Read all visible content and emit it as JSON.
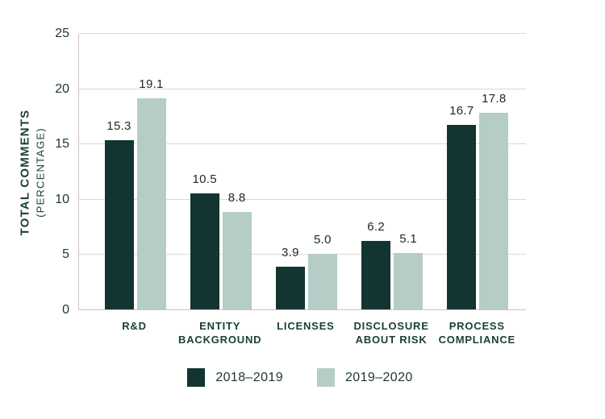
{
  "chart_data": {
    "type": "bar",
    "title": "",
    "categories": [
      "R&D",
      "ENTITY BACKGROUND",
      "LICENSES",
      "DISCLOSURE ABOUT RISK",
      "PROCESS COMPLIANCE"
    ],
    "series": [
      {
        "name": "2018–2019",
        "color": "#123531",
        "values": [
          15.3,
          10.5,
          3.9,
          6.2,
          16.7
        ]
      },
      {
        "name": "2019–2020",
        "color": "#b5cdc6",
        "values": [
          19.1,
          8.8,
          5.0,
          5.1,
          17.8
        ]
      }
    ],
    "ylabel_line1": "TOTAL COMMENTS",
    "ylabel_line2": "(PERCENTAGE)",
    "xlabel": "",
    "yticks": [
      0,
      5,
      10,
      15,
      20,
      25
    ],
    "ylim": [
      0,
      25
    ],
    "grid": true,
    "legend_position": "bottom",
    "value_label_decimals": 1
  },
  "colors": {
    "series_2018_2019": "#123531",
    "series_2019_2020": "#b5cdc6",
    "gridline": "#ddd9cf",
    "axis_line": "#ccc7bb",
    "tick_text": "#1d362f",
    "category_text": "#1b403a",
    "value_text": "#1a2824",
    "background": "#ffffff"
  }
}
